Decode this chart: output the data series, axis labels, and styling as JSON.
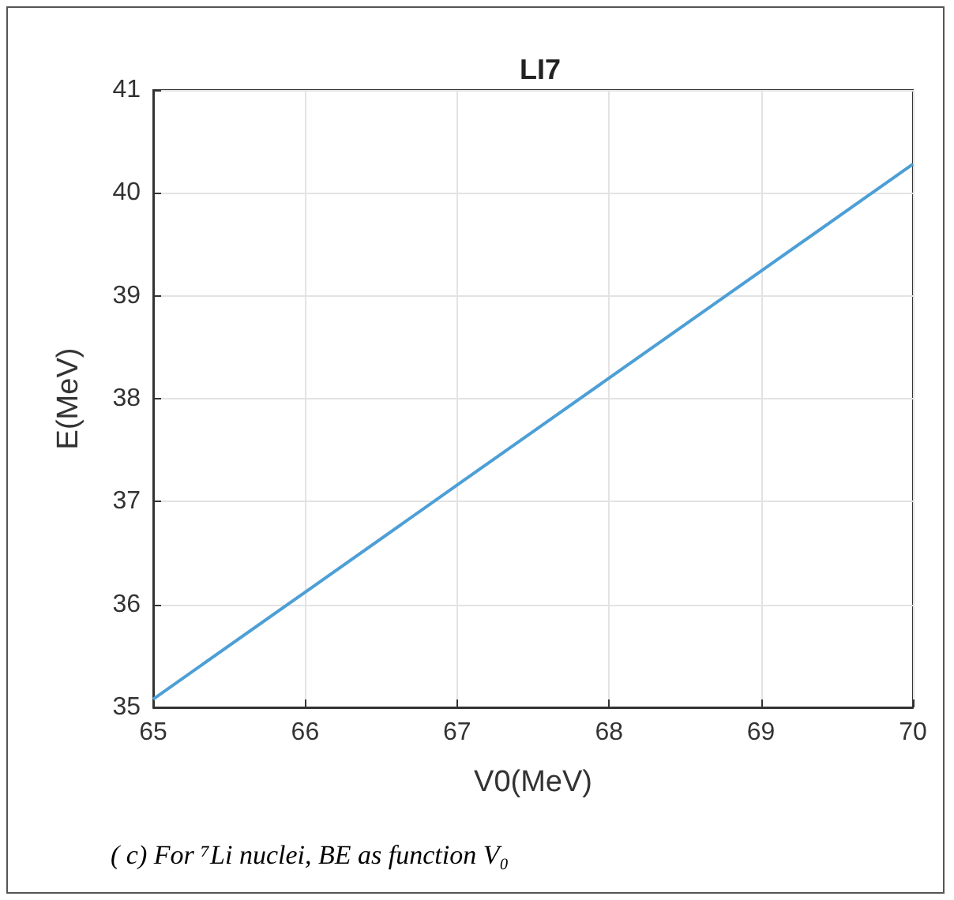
{
  "chart_data": {
    "type": "line",
    "title": "LI7",
    "xlabel": "V0(MeV)",
    "ylabel": "E(MeV)",
    "x": [
      65,
      66,
      67,
      68,
      69,
      70
    ],
    "series": [
      {
        "color": "#4d9fd6",
        "values": [
          35.08,
          36.12,
          37.16,
          38.2,
          39.24,
          40.28
        ]
      }
    ],
    "xlim": [
      65,
      70
    ],
    "xticks": [
      65,
      66,
      67,
      68,
      69,
      70
    ],
    "ylim": [
      35,
      41
    ],
    "yticks": [
      35,
      36,
      37,
      38,
      39,
      40,
      41
    ],
    "grid": true,
    "marker": "none",
    "line_style": "solid",
    "annotations": [
      "( c)  For ⁷Li nuclei, BE as  function V₀"
    ]
  }
}
